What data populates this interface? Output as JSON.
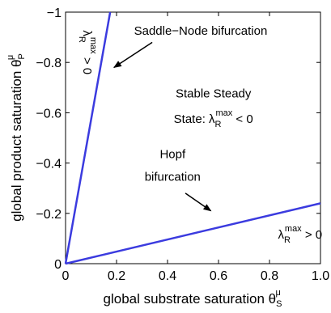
{
  "chart_data": {
    "type": "line",
    "xlabel": "global substrate saturation θ",
    "xlabel_sup": "μ",
    "xlabel_sub": "S",
    "ylabel": "global product saturation θ",
    "ylabel_sup": "μ",
    "ylabel_sub": "P",
    "xlim": [
      0,
      1
    ],
    "ylim": [
      0,
      -1
    ],
    "x_ticks": [
      0,
      0.2,
      0.4,
      0.6,
      0.8,
      1
    ],
    "x_tick_labels": [
      "0",
      "0.2",
      "0.4",
      "0.6",
      "0.8",
      "1.0"
    ],
    "y_ticks": [
      0,
      -0.2,
      -0.4,
      -0.6,
      -0.8,
      -1
    ],
    "y_tick_labels": [
      "0",
      "−0.2",
      "−0.4",
      "−0.6",
      "−0.8",
      "−1"
    ],
    "grid": false,
    "line_color": "#3b3bdf",
    "series": [
      {
        "x": [
          0,
          0.175
        ],
        "y": [
          0,
          -1
        ]
      },
      {
        "x": [
          0,
          1
        ],
        "y": [
          0,
          -0.24
        ]
      }
    ],
    "annotations": [
      {
        "id": "saddle",
        "text": "Saddle−Node bifurcation",
        "x": 0.53,
        "y": -0.91,
        "arrow_from": [
          0.34,
          -0.88
        ],
        "arrow_to": [
          0.19,
          -0.78
        ]
      },
      {
        "id": "hopf1",
        "text": "Hopf",
        "x": 0.42,
        "y": -0.42
      },
      {
        "id": "hopf2",
        "text": "bifurcation",
        "x": 0.42,
        "y": -0.33,
        "arrow_from": [
          0.47,
          -0.28
        ],
        "arrow_to": [
          0.57,
          -0.21
        ]
      },
      {
        "id": "stable1",
        "text": "Stable Steady",
        "x": 0.58,
        "y": -0.66
      },
      {
        "id": "stable2",
        "text": "State: λ",
        "sup": "max",
        "sub": "R",
        "tail": " < 0",
        "x": 0.58,
        "y": -0.56
      },
      {
        "id": "lam_bottom",
        "text": "λ",
        "sup": "max",
        "sub": "R",
        "tail": " > 0",
        "x": 0.92,
        "y": -0.1
      },
      {
        "id": "lam_left",
        "text": "λ",
        "sup": "max",
        "sub": "R",
        "tail": " > 0",
        "x": 0.07,
        "y": -0.84,
        "rotate": 90
      }
    ]
  }
}
